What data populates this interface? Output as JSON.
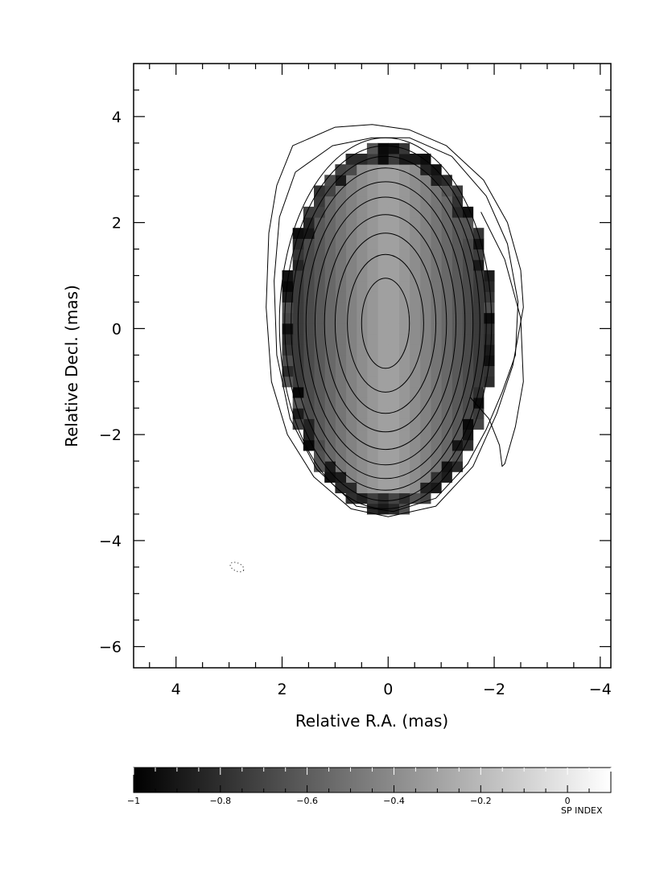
{
  "chart_data": {
    "type": "heatmap",
    "xlabel": "Relative R.A. (mas)",
    "ylabel": "Relative Decl. (mas)",
    "xlim": [
      4.8,
      -4.2
    ],
    "ylim": [
      -6.4,
      5.0
    ],
    "x_ticks": [
      4,
      2,
      0,
      -2,
      -4
    ],
    "y_ticks": [
      4,
      2,
      0,
      -2,
      -4,
      -6
    ],
    "x_tick_labels": [
      "4",
      "2",
      "0",
      "−2",
      "−4"
    ],
    "y_tick_labels": [
      "4",
      "2",
      "0",
      "−2",
      "−4",
      "−6"
    ],
    "colorbar": {
      "label": "SP INDEX",
      "range": [
        -1.0,
        0.1
      ],
      "ticks": [
        -1,
        -0.8,
        -0.6,
        -0.4,
        -0.2,
        0
      ],
      "tick_labels": [
        "−1",
        "−0.8",
        "−0.6",
        "−0.4",
        "−0.2",
        "0"
      ]
    },
    "spectral_index_map": {
      "center": [
        0,
        0
      ],
      "semi_axis_ra": 2.0,
      "semi_axis_dec": 3.5,
      "pixel_size": 0.2,
      "center_value": -0.3,
      "edge_value": -0.85
    },
    "contours": {
      "center": [
        0.05,
        0.1
      ],
      "levels_semi_axes": [
        [
          0.45,
          0.85
        ],
        [
          0.72,
          1.3
        ],
        [
          0.95,
          1.7
        ],
        [
          1.15,
          2.05
        ],
        [
          1.33,
          2.38
        ],
        [
          1.5,
          2.67
        ],
        [
          1.65,
          2.93
        ],
        [
          1.78,
          3.15
        ],
        [
          1.9,
          3.35
        ],
        [
          2.0,
          3.5
        ]
      ],
      "outer_contours": [
        [
          [
            0.3,
            3.85
          ],
          [
            1.0,
            3.8
          ],
          [
            1.8,
            3.45
          ],
          [
            2.1,
            2.7
          ],
          [
            2.25,
            1.8
          ],
          [
            2.3,
            0.4
          ],
          [
            2.2,
            -1.0
          ],
          [
            1.9,
            -2.0
          ],
          [
            1.4,
            -2.8
          ],
          [
            0.7,
            -3.4
          ],
          [
            0.0,
            -3.55
          ],
          [
            -0.9,
            -3.35
          ],
          [
            -1.6,
            -2.6
          ],
          [
            -2.05,
            -1.6
          ],
          [
            -2.35,
            -0.7
          ],
          [
            -2.55,
            0.4
          ],
          [
            -2.5,
            1.1
          ],
          [
            -2.25,
            2.0
          ],
          [
            -1.8,
            2.8
          ],
          [
            -1.1,
            3.45
          ],
          [
            -0.4,
            3.75
          ],
          [
            0.3,
            3.85
          ]
        ],
        [
          [
            0.3,
            3.6
          ],
          [
            1.05,
            3.45
          ],
          [
            1.75,
            2.95
          ],
          [
            2.05,
            2.1
          ],
          [
            2.15,
            0.9
          ],
          [
            2.1,
            -0.5
          ],
          [
            1.85,
            -1.7
          ],
          [
            1.35,
            -2.65
          ],
          [
            0.6,
            -3.35
          ],
          [
            -0.1,
            -3.45
          ],
          [
            -0.9,
            -3.2
          ],
          [
            -1.5,
            -2.55
          ],
          [
            -1.85,
            -1.9
          ],
          [
            -2.15,
            -1.2
          ],
          [
            -2.4,
            -0.5
          ],
          [
            -2.45,
            0.5
          ],
          [
            -2.25,
            1.6
          ],
          [
            -1.85,
            2.5
          ],
          [
            -1.2,
            3.25
          ],
          [
            -0.4,
            3.6
          ],
          [
            0.3,
            3.6
          ]
        ],
        [
          [
            -1.55,
            -1.3
          ],
          [
            -1.9,
            -1.7
          ],
          [
            -2.1,
            -2.2
          ],
          [
            -2.15,
            -2.6
          ],
          [
            -2.2,
            -2.55
          ],
          [
            -2.4,
            -1.85
          ],
          [
            -2.55,
            -1.0
          ],
          [
            -2.5,
            0.2
          ],
          [
            -2.2,
            1.3
          ],
          [
            -1.75,
            2.2
          ]
        ]
      ],
      "noise_center": [
        2.85,
        -4.5
      ]
    }
  }
}
